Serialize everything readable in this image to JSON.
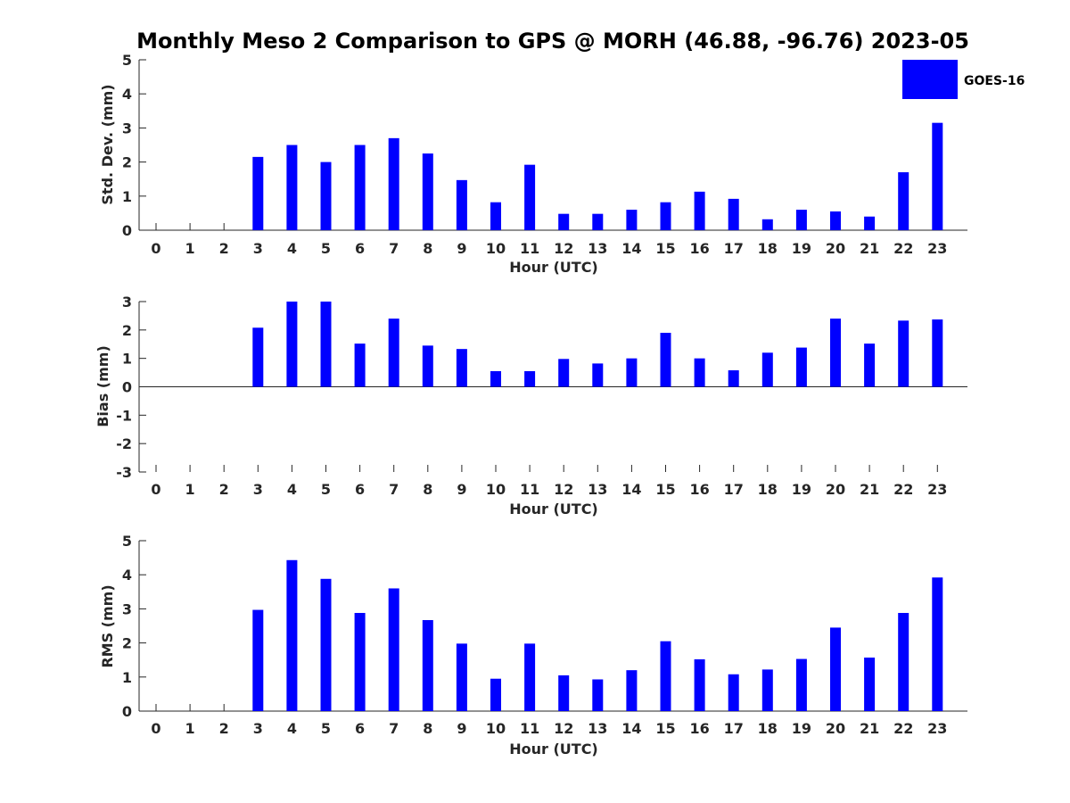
{
  "chart_data": {
    "title": "Monthly Meso 2 Comparison to GPS @ MORH (46.88, -96.76) 2023-05",
    "legend": {
      "label": "GOES-16",
      "color": "#0000ff",
      "placement": "top-right"
    },
    "bar_color": "#0000ff",
    "categories": [
      "0",
      "1",
      "2",
      "3",
      "4",
      "5",
      "6",
      "7",
      "8",
      "9",
      "10",
      "11",
      "12",
      "13",
      "14",
      "15",
      "16",
      "17",
      "18",
      "19",
      "20",
      "21",
      "22",
      "23"
    ],
    "panels": [
      {
        "type": "bar",
        "ylabel": "Std. Dev. (mm)",
        "xlabel": "Hour (UTC)",
        "ylim": [
          0,
          5
        ],
        "yticks": [
          "0",
          "1",
          "2",
          "3",
          "4",
          "5"
        ],
        "values": [
          null,
          null,
          null,
          2.15,
          2.5,
          2.0,
          2.5,
          2.7,
          2.25,
          1.47,
          0.82,
          1.92,
          0.48,
          0.48,
          0.6,
          0.82,
          1.13,
          0.92,
          0.32,
          0.6,
          0.55,
          0.4,
          1.7,
          3.15
        ]
      },
      {
        "type": "bar",
        "ylabel": "Bias (mm)",
        "xlabel": "Hour (UTC)",
        "ylim": [
          -3,
          3
        ],
        "yticks": [
          "-3",
          "-2",
          "-1",
          "0",
          "1",
          "2",
          "3"
        ],
        "values": [
          null,
          null,
          null,
          2.08,
          3.0,
          3.0,
          1.52,
          2.4,
          1.45,
          1.33,
          0.55,
          0.55,
          0.98,
          0.82,
          1.0,
          1.9,
          1.0,
          0.58,
          1.2,
          1.38,
          2.4,
          1.52,
          2.33,
          2.37
        ]
      },
      {
        "type": "bar",
        "ylabel": "RMS (mm)",
        "xlabel": "Hour (UTC)",
        "ylim": [
          0,
          5
        ],
        "yticks": [
          "0",
          "1",
          "2",
          "3",
          "4",
          "5"
        ],
        "values": [
          null,
          null,
          null,
          2.97,
          4.43,
          3.88,
          2.88,
          3.6,
          2.67,
          1.98,
          0.95,
          1.98,
          1.05,
          0.93,
          1.2,
          2.05,
          1.52,
          1.08,
          1.22,
          1.53,
          2.45,
          1.57,
          2.88,
          3.92
        ]
      }
    ]
  }
}
